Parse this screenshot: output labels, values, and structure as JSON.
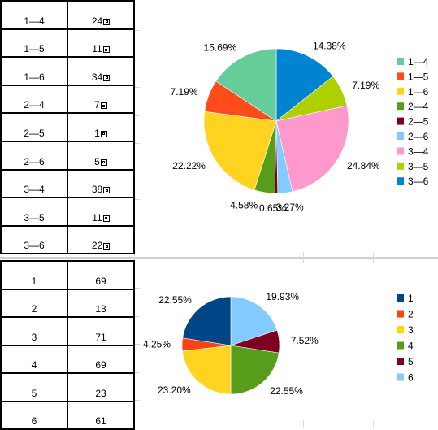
{
  "table_top": {
    "rows": [
      {
        "pair": "1—4",
        "count": "24"
      },
      {
        "pair": "1—5",
        "count": "11"
      },
      {
        "pair": "1—6",
        "count": "34"
      },
      {
        "pair": "2—4",
        "count": "7"
      },
      {
        "pair": "2—5",
        "count": "1"
      },
      {
        "pair": "2—6",
        "count": "5"
      },
      {
        "pair": "3—4",
        "count": "38"
      },
      {
        "pair": "3—5",
        "count": "11"
      },
      {
        "pair": "3—6",
        "count": "22"
      }
    ]
  },
  "table_bottom": {
    "rows": [
      {
        "key": "1",
        "count": "69"
      },
      {
        "key": "2",
        "count": "13"
      },
      {
        "key": "3",
        "count": "71"
      },
      {
        "key": "4",
        "count": "69"
      },
      {
        "key": "5",
        "count": "23"
      },
      {
        "key": "6",
        "count": "61"
      }
    ]
  },
  "chart_data": [
    {
      "type": "pie",
      "title": "",
      "legend_position": "right",
      "slices": [
        {
          "label": "1—4",
          "value": 15.69,
          "percent_label": "15.69%",
          "color": "#66cc99"
        },
        {
          "label": "1—5",
          "value": 7.19,
          "percent_label": "7.19%",
          "color": "#ff4c1a"
        },
        {
          "label": "1—6",
          "value": 22.22,
          "percent_label": "22.22%",
          "color": "#ffd320"
        },
        {
          "label": "2—4",
          "value": 4.58,
          "percent_label": "4.58%",
          "color": "#579d1c"
        },
        {
          "label": "2—5",
          "value": 0.65,
          "percent_label": "0.65%",
          "color": "#7e0021"
        },
        {
          "label": "2—6",
          "value": 3.27,
          "percent_label": "3.27%",
          "color": "#83caff"
        },
        {
          "label": "3—4",
          "value": 24.84,
          "percent_label": "24.84%",
          "color": "#ff99cc"
        },
        {
          "label": "3—5",
          "value": 7.19,
          "percent_label": "7.19%",
          "color": "#aecf00"
        },
        {
          "label": "3—6",
          "value": 14.38,
          "percent_label": "14.38%",
          "color": "#0084d1"
        }
      ]
    },
    {
      "type": "pie",
      "title": "",
      "legend_position": "right",
      "slices": [
        {
          "label": "1",
          "value": 22.55,
          "percent_label": "22.55%",
          "color": "#004586"
        },
        {
          "label": "2",
          "value": 4.25,
          "percent_label": "4.25%",
          "color": "#ff420e"
        },
        {
          "label": "3",
          "value": 23.2,
          "percent_label": "23.20%",
          "color": "#ffd320"
        },
        {
          "label": "4",
          "value": 22.55,
          "percent_label": "22.55%",
          "color": "#579d1c"
        },
        {
          "label": "5",
          "value": 7.52,
          "percent_label": "7.52%",
          "color": "#7e0021"
        },
        {
          "label": "6",
          "value": 19.93,
          "percent_label": "19.93%",
          "color": "#83caff"
        }
      ]
    }
  ]
}
